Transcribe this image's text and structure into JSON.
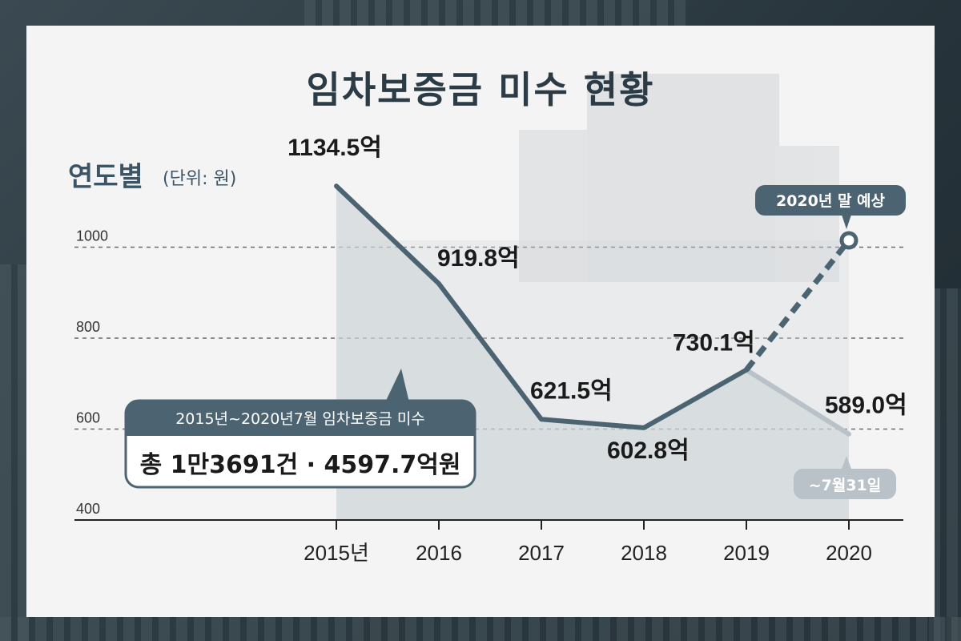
{
  "title": "임차보증금 미수 현황",
  "ylabel": "연도별",
  "unit": "(단위: 원)",
  "colors": {
    "line": "#4c6472",
    "line_grey": "#b9c2c8",
    "fill": "#c7cdd1",
    "title": "#2c3c46",
    "callout": "#4c6472"
  },
  "chart_data": {
    "type": "line",
    "categories": [
      "2015년",
      "2016",
      "2017",
      "2018",
      "2019",
      "2020"
    ],
    "series": [
      {
        "values": [
          1134.5,
          919.8,
          621.5,
          602.8,
          730.1,
          null
        ],
        "style": "solid"
      },
      {
        "values": [
          null,
          null,
          null,
          null,
          730.1,
          1015.0
        ],
        "style": "dashed"
      },
      {
        "values": [
          null,
          null,
          null,
          null,
          730.1,
          589.0
        ],
        "style": "light"
      }
    ],
    "data_labels": [
      "1134.5억",
      "919.8억",
      "621.5억",
      "602.8억",
      "730.1억",
      "589.0억"
    ],
    "y_ticks": [
      400,
      600,
      800,
      1000
    ],
    "ylim": [
      400,
      1200
    ],
    "grid": true,
    "annotations": {
      "forecast": "2020년 말 예상",
      "partial": "~7월31일"
    }
  },
  "callout": {
    "header": "2015년~2020년7월 임차보증금 미수",
    "total": "총 1만3691건 · 4597.7억원"
  }
}
